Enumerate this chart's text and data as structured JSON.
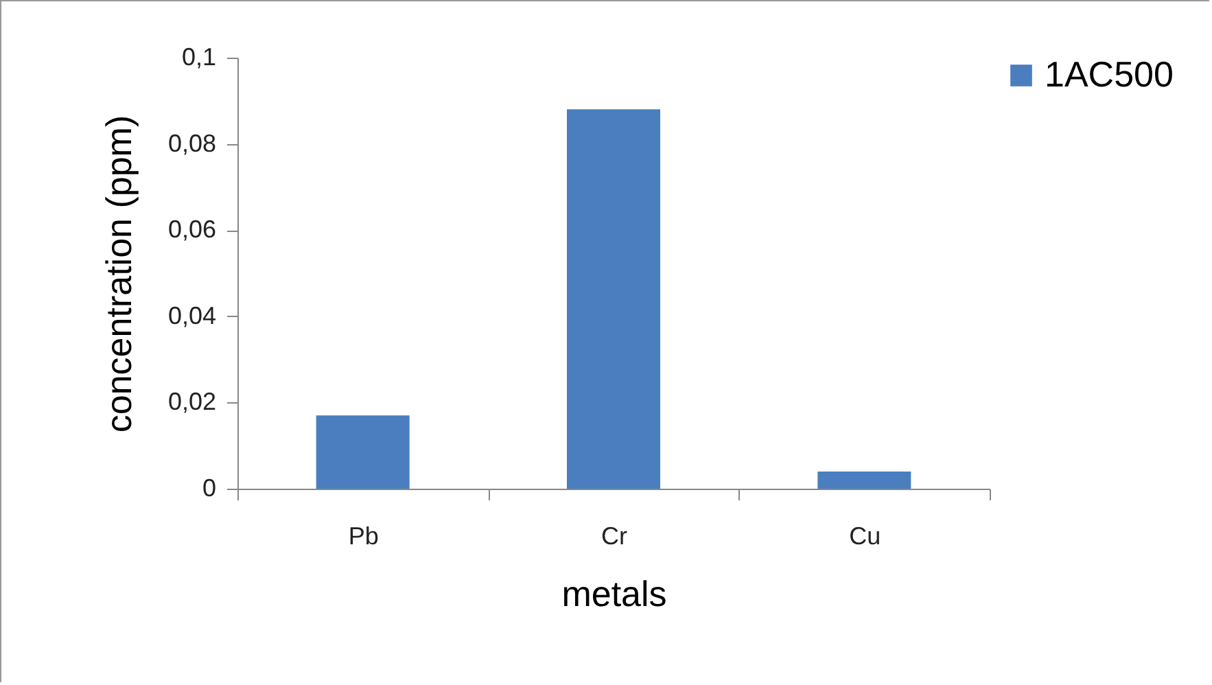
{
  "chart_data": {
    "type": "bar",
    "xlabel": "metals",
    "ylabel": "concentration (ppm)",
    "categories": [
      "Pb",
      "Cr",
      "Cu"
    ],
    "series": [
      {
        "name": "1AC500",
        "color": "#4a7ebf",
        "values": [
          0.017,
          0.088,
          0.004
        ]
      }
    ],
    "ylim": [
      0,
      0.1
    ],
    "yticks": [
      0,
      {
        "value": 0.02,
        "label": "0,02"
      },
      {
        "value": 0.04,
        "label": "0,04"
      },
      {
        "value": 0.06,
        "label": "0,06"
      },
      {
        "value": 0.08,
        "label": "0,08"
      },
      {
        "value": 0.1,
        "label": "0,1"
      }
    ],
    "grid": false,
    "legend": "right"
  }
}
